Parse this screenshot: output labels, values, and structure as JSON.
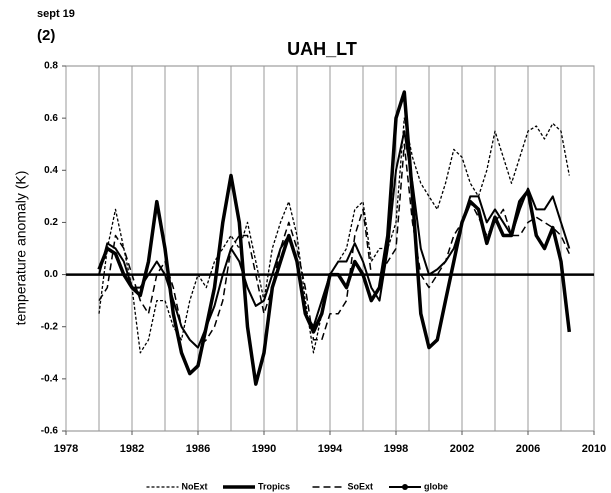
{
  "chart_data": {
    "type": "line",
    "note_top": "sept 19",
    "panel_label": "(2)",
    "title": "UAH_LT",
    "y_label": "temperature anomaly (K)",
    "x": [
      1980,
      1980.5,
      1981,
      1981.5,
      1982,
      1982.5,
      1983,
      1983.5,
      1984,
      1984.5,
      1985,
      1985.5,
      1986,
      1986.5,
      1987,
      1987.5,
      1988,
      1988.5,
      1989,
      1989.5,
      1990,
      1990.5,
      1991,
      1991.5,
      1992,
      1992.5,
      1993,
      1993.5,
      1994,
      1994.5,
      1995,
      1995.5,
      1996,
      1996.5,
      1997,
      1997.5,
      1998,
      1998.5,
      1999,
      1999.5,
      2000,
      2000.5,
      2001,
      2001.5,
      2002,
      2002.5,
      2003,
      2003.5,
      2004,
      2004.5,
      2005,
      2005.5,
      2006,
      2006.5,
      2007,
      2007.5,
      2008,
      2008.5
    ],
    "series": [
      {
        "name": "NoExt",
        "color": "#000000",
        "style": "dotted",
        "values": [
          -0.15,
          0.1,
          0.25,
          0.1,
          -0.05,
          -0.3,
          -0.25,
          -0.1,
          -0.1,
          -0.2,
          -0.25,
          -0.1,
          0.0,
          -0.05,
          0.05,
          0.1,
          0.15,
          0.1,
          0.2,
          0.05,
          -0.1,
          0.1,
          0.2,
          0.28,
          0.15,
          -0.1,
          -0.3,
          -0.15,
          0.0,
          0.05,
          0.1,
          0.25,
          0.28,
          0.05,
          0.1,
          0.1,
          0.2,
          0.6,
          0.45,
          0.35,
          0.3,
          0.25,
          0.35,
          0.48,
          0.45,
          0.35,
          0.3,
          0.4,
          0.55,
          0.45,
          0.35,
          0.45,
          0.55,
          0.57,
          0.52,
          0.58,
          0.55,
          0.38
        ]
      },
      {
        "name": "Tropics",
        "color": "#000000",
        "style": "thick",
        "values": [
          0.02,
          0.1,
          0.08,
          0.0,
          -0.05,
          -0.08,
          0.05,
          0.28,
          0.1,
          -0.15,
          -0.3,
          -0.38,
          -0.35,
          -0.2,
          -0.05,
          0.2,
          0.38,
          0.2,
          -0.2,
          -0.42,
          -0.3,
          -0.05,
          0.05,
          0.15,
          0.05,
          -0.15,
          -0.22,
          -0.15,
          0.0,
          0.0,
          -0.05,
          0.05,
          0.0,
          -0.1,
          -0.05,
          0.15,
          0.6,
          0.7,
          0.3,
          -0.15,
          -0.28,
          -0.25,
          -0.1,
          0.05,
          0.2,
          0.28,
          0.25,
          0.12,
          0.22,
          0.15,
          0.15,
          0.28,
          0.32,
          0.15,
          0.1,
          0.18,
          0.05,
          -0.22
        ]
      },
      {
        "name": "SoExt",
        "color": "#000000",
        "style": "dashed",
        "values": [
          -0.1,
          -0.05,
          0.15,
          0.1,
          0.0,
          -0.1,
          -0.15,
          0.0,
          0.05,
          -0.05,
          -0.2,
          -0.25,
          -0.28,
          -0.25,
          -0.2,
          -0.1,
          0.1,
          0.15,
          0.15,
          0.0,
          -0.15,
          -0.05,
          0.1,
          0.2,
          0.1,
          -0.05,
          -0.25,
          -0.25,
          -0.15,
          -0.15,
          -0.1,
          0.15,
          0.25,
          0.0,
          0.0,
          0.05,
          0.1,
          0.5,
          0.2,
          0.0,
          -0.05,
          0.0,
          0.05,
          0.15,
          0.2,
          0.28,
          0.22,
          0.15,
          0.2,
          0.25,
          0.15,
          0.15,
          0.2,
          0.22,
          0.2,
          0.18,
          0.15,
          0.08
        ]
      },
      {
        "name": "globe",
        "color": "#000000",
        "style": "marker",
        "values": [
          0.0,
          0.12,
          0.1,
          0.05,
          -0.05,
          -0.05,
          0.0,
          0.05,
          0.0,
          -0.1,
          -0.2,
          -0.25,
          -0.28,
          -0.2,
          -0.12,
          0.0,
          0.1,
          0.05,
          -0.05,
          -0.12,
          -0.1,
          0.0,
          0.1,
          0.15,
          0.05,
          -0.15,
          -0.2,
          -0.1,
          0.0,
          0.05,
          0.05,
          0.12,
          0.05,
          -0.05,
          -0.1,
          0.1,
          0.4,
          0.55,
          0.35,
          0.1,
          0.0,
          0.02,
          0.05,
          0.1,
          0.2,
          0.3,
          0.3,
          0.2,
          0.25,
          0.2,
          0.15,
          0.25,
          0.33,
          0.25,
          0.25,
          0.3,
          0.2,
          0.1
        ]
      }
    ],
    "xlim": [
      1978,
      2010
    ],
    "xticks": [
      1978,
      1982,
      1986,
      1990,
      1994,
      1998,
      2002,
      2006,
      2010
    ],
    "x_minor_ticks": [
      1980,
      1984,
      1988,
      1992,
      1996,
      2000,
      2004,
      2008
    ],
    "ylim": [
      -0.6,
      0.8
    ],
    "yticks": [
      -0.6,
      -0.4,
      -0.2,
      {
        "value": 0,
        "label": "0.0"
      },
      0.2,
      0.4,
      0.6,
      0.8
    ],
    "grid": "x",
    "legend": "bottom"
  }
}
